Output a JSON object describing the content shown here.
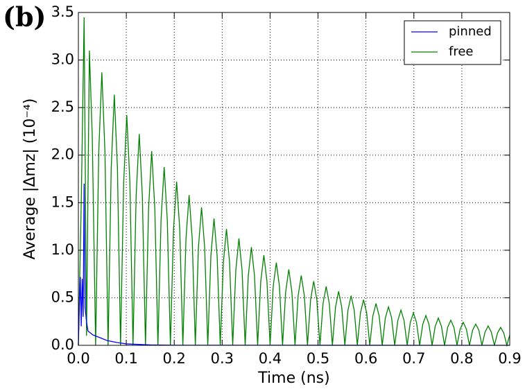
{
  "chart_data": {
    "type": "line",
    "panel_label": "(b)",
    "xlabel": "Time (ns)",
    "ylabel": "Average |Δmz| (10⁻⁴)",
    "xlim": [
      0,
      0.9
    ],
    "ylim": [
      0,
      3.5
    ],
    "xticks": [
      {
        "value": 0,
        "label": "0.0"
      },
      0.1,
      0.2,
      0.3,
      0.4,
      0.5,
      0.6,
      0.7,
      0.8,
      0.9
    ],
    "yticks": [
      {
        "value": 0,
        "label": "0.0"
      },
      0.5,
      {
        "value": 1,
        "label": "1.0"
      },
      1.5,
      {
        "value": 2,
        "label": "2.0"
      },
      2.5,
      {
        "value": 3,
        "label": "3.0"
      },
      3.5
    ],
    "grid": true,
    "legend": "upper right",
    "series": [
      {
        "name": "pinned",
        "color": "#0000ff",
        "x": [
          0,
          0.002,
          0.004,
          0.006,
          0.008,
          0.01,
          0.012,
          0.014,
          0.017,
          0.02,
          0.025,
          0.03,
          0.04,
          0.05,
          0.06,
          0.08,
          0.1,
          0.15,
          0.2,
          0.9
        ],
        "values": [
          0,
          0.4,
          0.72,
          0.2,
          0.7,
          0.3,
          1.7,
          0.4,
          0.25,
          0.15,
          0.13,
          0.11,
          0.09,
          0.07,
          0.05,
          0.03,
          0.015,
          0.004,
          0.001,
          0
        ]
      },
      {
        "name": "free",
        "color": "#008000",
        "x": [
          0,
          0.006,
          0.012,
          0.017,
          0.023,
          0.029,
          0.036,
          0.0425,
          0.049,
          0.0555,
          0.062,
          0.0685,
          0.075,
          0.0815,
          0.088,
          0.0945,
          0.101,
          0.1075,
          0.114,
          0.1205,
          0.127,
          0.1335,
          0.14,
          0.1465,
          0.153,
          0.1595,
          0.166,
          0.1725,
          0.179,
          0.1855,
          0.192,
          0.1985,
          0.205,
          0.2115,
          0.218,
          0.2245,
          0.231,
          0.2375,
          0.244,
          0.2505,
          0.257,
          0.2635,
          0.27,
          0.2765,
          0.283,
          0.2895,
          0.296,
          0.3025,
          0.309,
          0.3155,
          0.322,
          0.3285,
          0.335,
          0.3415,
          0.348,
          0.3545,
          0.361,
          0.3675,
          0.374,
          0.3805,
          0.387,
          0.3935,
          0.4,
          0.4065,
          0.413,
          0.4195,
          0.426,
          0.4325,
          0.439,
          0.4455,
          0.452,
          0.4585,
          0.465,
          0.4715,
          0.478,
          0.4845,
          0.491,
          0.4975,
          0.504,
          0.5105,
          0.517,
          0.5235,
          0.53,
          0.5365,
          0.543,
          0.5495,
          0.556,
          0.5625,
          0.569,
          0.5755,
          0.582,
          0.5885,
          0.595,
          0.6015,
          0.608,
          0.6145,
          0.621,
          0.6275,
          0.634,
          0.6405,
          0.647,
          0.6535,
          0.66,
          0.6665,
          0.673,
          0.6795,
          0.686,
          0.6925,
          0.699,
          0.7055,
          0.712,
          0.7185,
          0.725,
          0.7315,
          0.738,
          0.7445,
          0.751,
          0.7575,
          0.764,
          0.7705,
          0.777,
          0.7835,
          0.79,
          0.7965,
          0.803,
          0.8095,
          0.816,
          0.8225,
          0.829,
          0.8355,
          0.842,
          0.8485,
          0.855,
          0.8615,
          0.868,
          0.8745,
          0.881,
          0.8875,
          0.894,
          0.9
        ],
        "values": [
          0,
          1.5,
          3.45,
          0.1,
          3.1,
          2.2,
          0,
          2.03,
          2.87,
          2.03,
          0,
          1.86,
          2.636,
          1.86,
          0,
          1.71,
          2.42,
          1.71,
          0,
          1.57,
          2.222,
          1.57,
          0,
          1.44,
          2.041,
          1.44,
          0,
          1.32,
          1.874,
          1.32,
          0,
          1.22,
          1.721,
          1.22,
          0,
          1.12,
          1.58,
          1.12,
          0,
          1.03,
          1.451,
          1.03,
          0,
          0.94,
          1.333,
          0.94,
          0,
          0.87,
          1.224,
          0.87,
          0,
          0.79,
          1.124,
          0.79,
          0,
          0.73,
          1.032,
          0.73,
          0,
          0.67,
          0.948,
          0.67,
          0,
          0.62,
          0.87,
          0.62,
          0,
          0.56,
          0.799,
          0.56,
          0,
          0.52,
          0.734,
          0.52,
          0,
          0.48,
          0.674,
          0.48,
          0,
          0.44,
          0.619,
          0.44,
          0,
          0.4,
          0.568,
          0.4,
          0,
          0.37,
          0.522,
          0.37,
          0,
          0.34,
          0.479,
          0.34,
          0,
          0.31,
          0.44,
          0.31,
          0,
          0.29,
          0.404,
          0.29,
          0,
          0.26,
          0.371,
          0.26,
          0,
          0.24,
          0.341,
          0.24,
          0,
          0.22,
          0.313,
          0.22,
          0,
          0.2,
          0.287,
          0.2,
          0,
          0.19,
          0.264,
          0.19,
          0,
          0.17,
          0.242,
          0.17,
          0,
          0.16,
          0.223,
          0.16,
          0,
          0.14,
          0.204,
          0.14,
          0,
          0.13,
          0.188,
          0.13,
          0,
          0.11
        ]
      }
    ]
  }
}
